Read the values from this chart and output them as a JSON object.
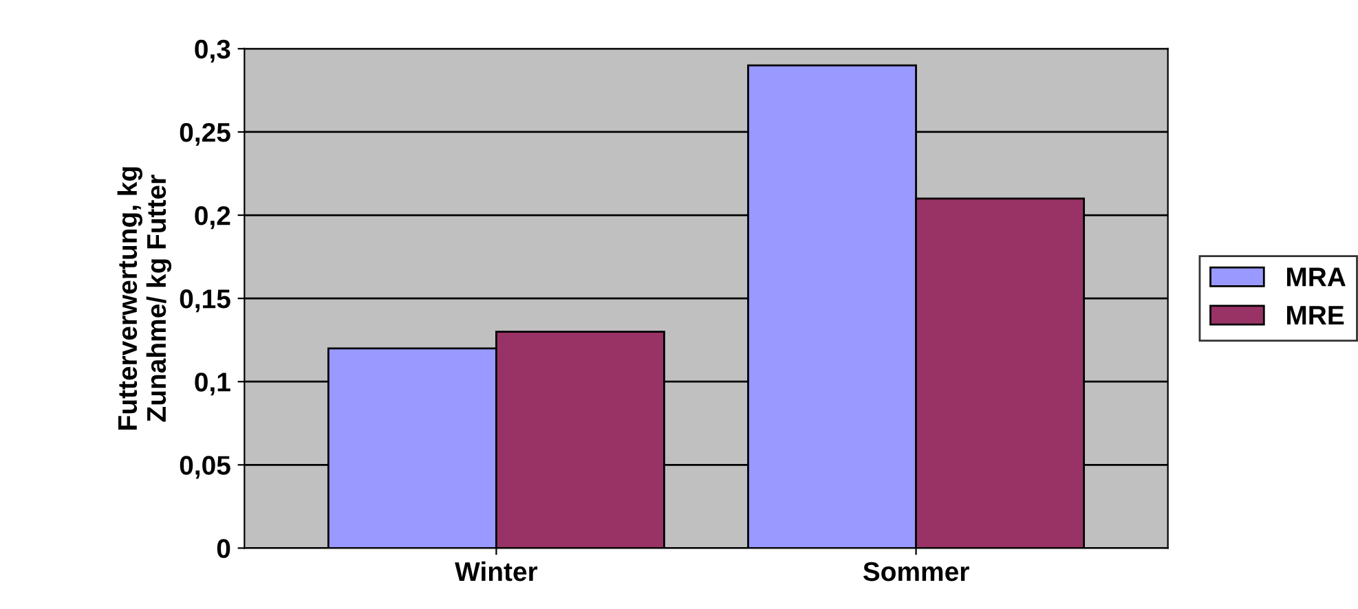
{
  "chart_data": {
    "type": "bar",
    "ylabel": "Futterverwertung, kg\nZunahme/ kg Futter",
    "categories": [
      "Winter",
      "Sommer"
    ],
    "series": [
      {
        "name": "MRA",
        "color": "#9999ff",
        "values": [
          0.12,
          0.29
        ]
      },
      {
        "name": "MRE",
        "color": "#993366",
        "values": [
          0.13,
          0.21
        ]
      }
    ],
    "ylim": [
      0,
      0.3
    ],
    "yticks": [
      {
        "value": 0,
        "label": "0"
      },
      {
        "value": 0.05,
        "label": "0,05"
      },
      {
        "value": 0.1,
        "label": "0,1"
      },
      {
        "value": 0.15,
        "label": "0,15"
      },
      {
        "value": 0.2,
        "label": "0,2"
      },
      {
        "value": 0.25,
        "label": "0,25"
      },
      {
        "value": 0.3,
        "label": "0,3"
      }
    ],
    "grid": "y",
    "legend": "right"
  }
}
